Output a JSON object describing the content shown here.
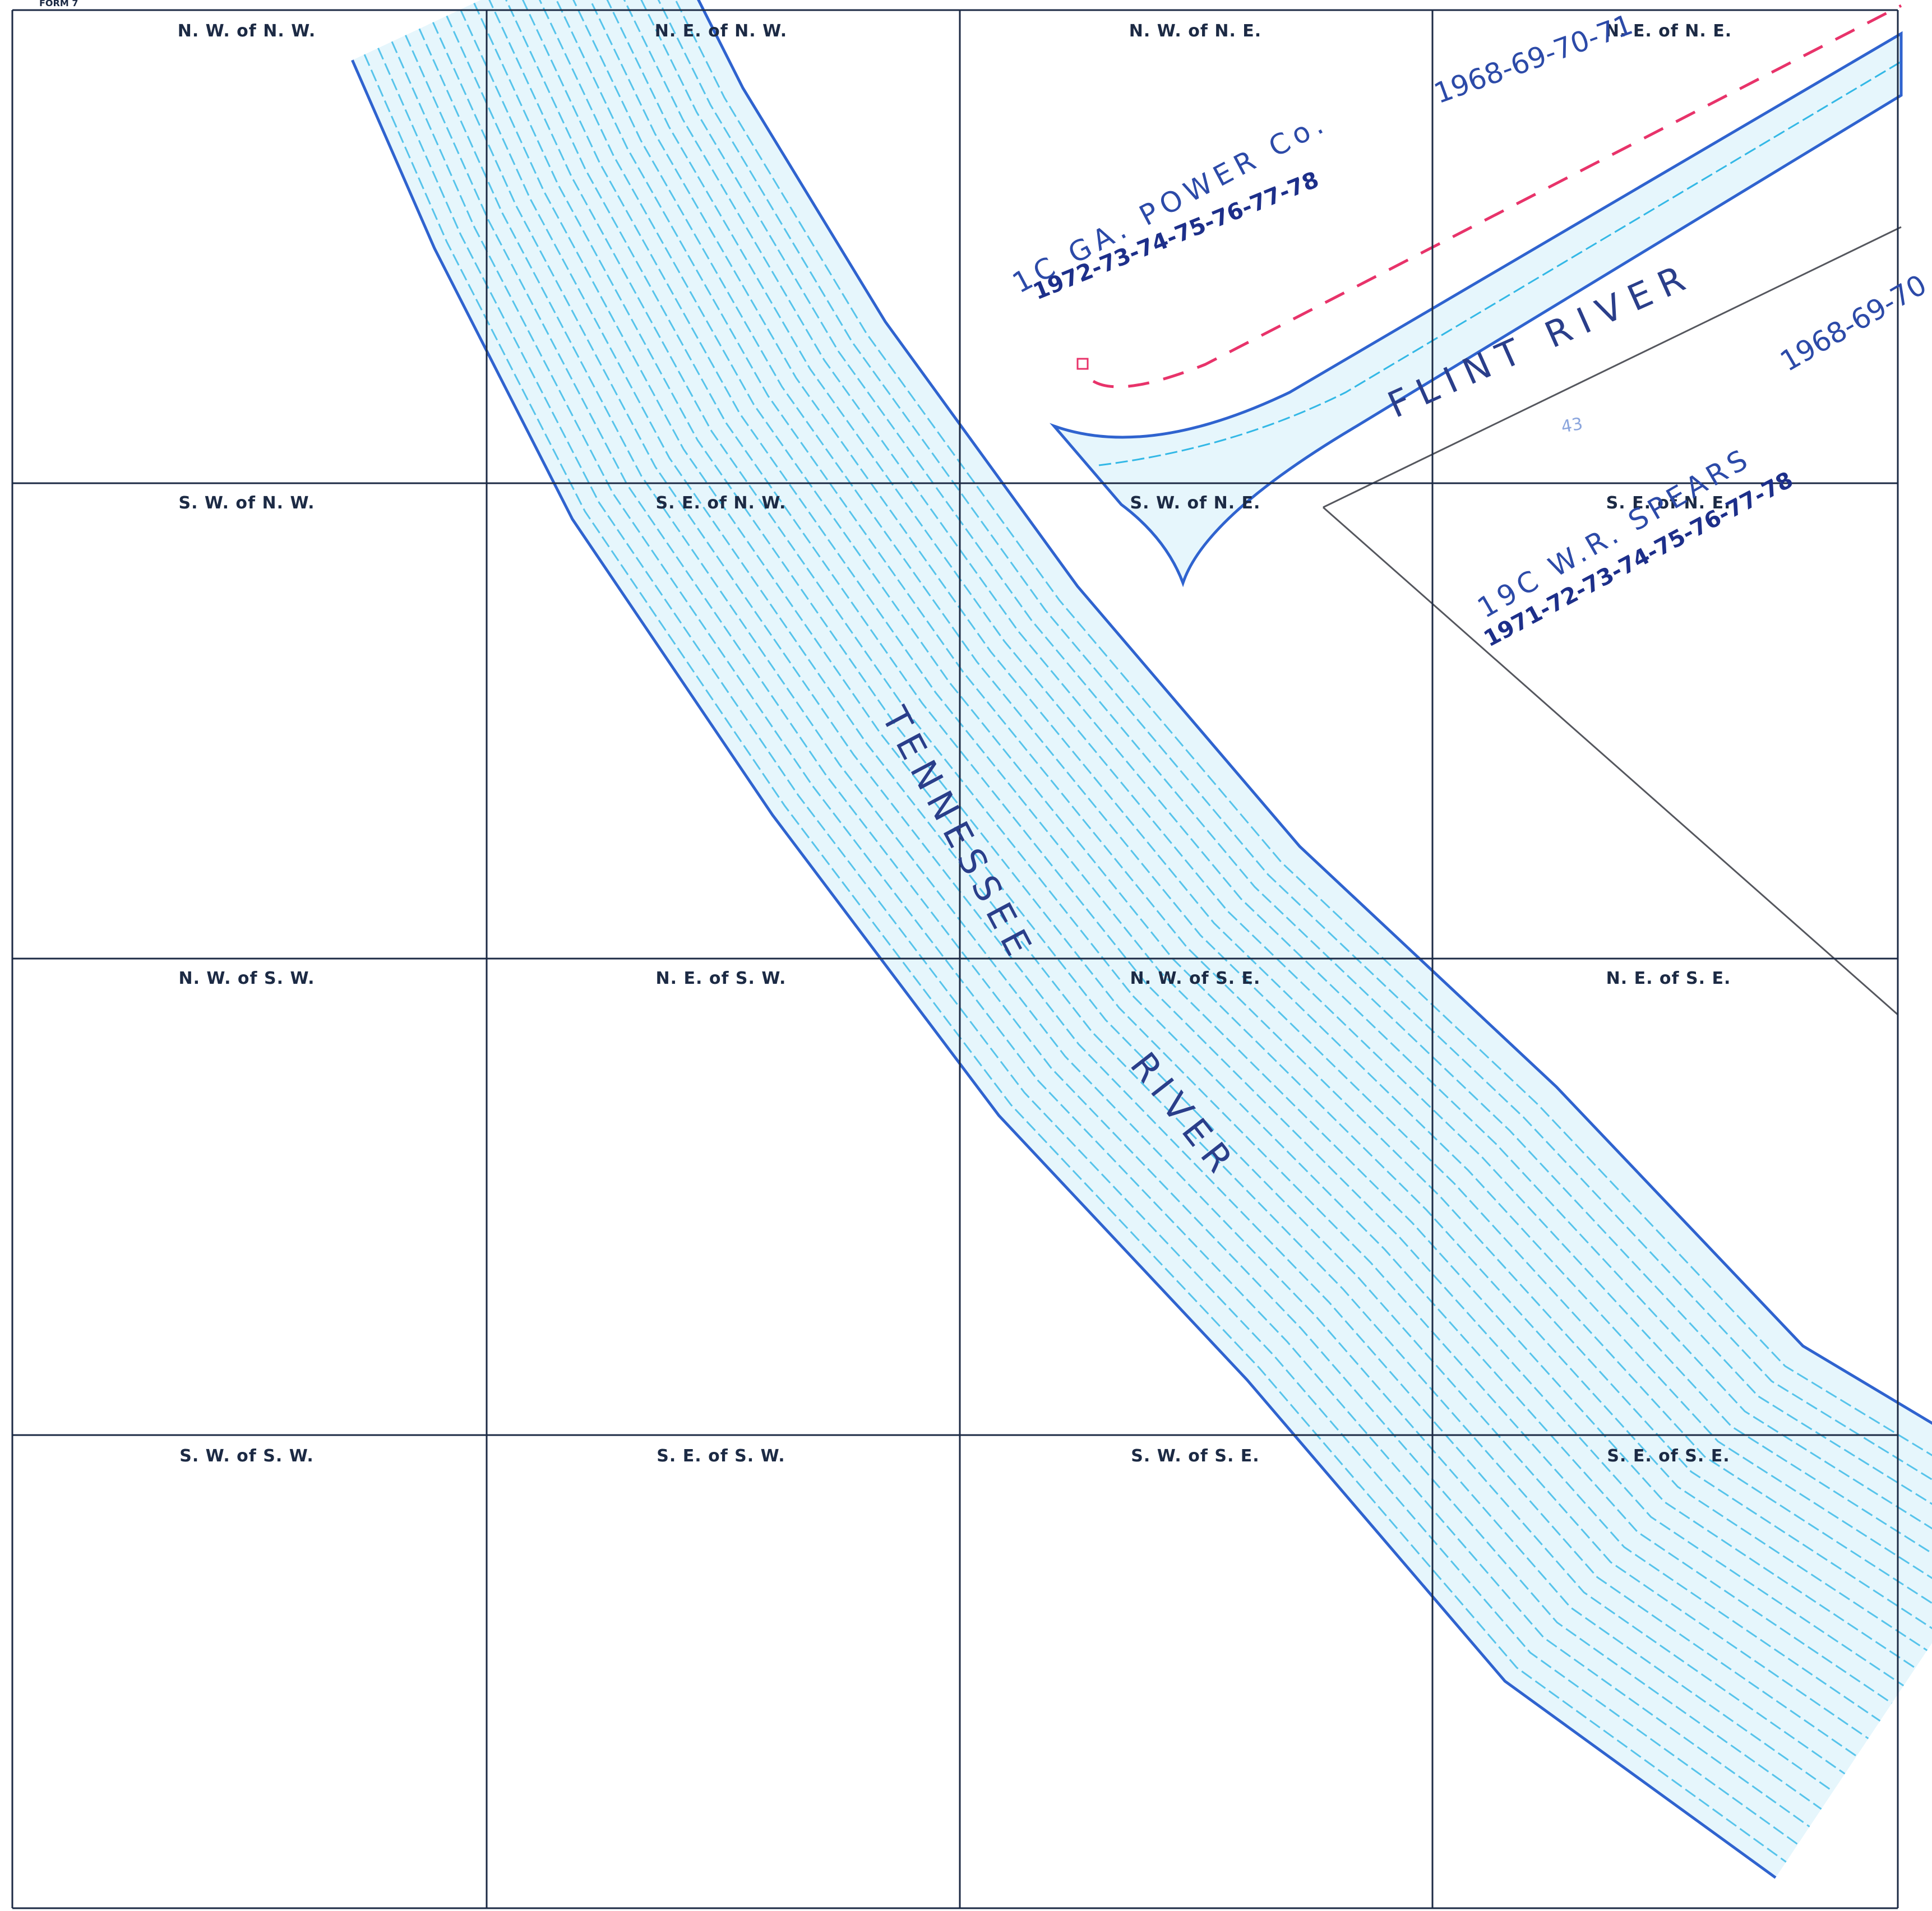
{
  "form_header": "FORM 7",
  "cells": [
    {
      "id": "nw-of-nw",
      "label": "N. W. of N. W."
    },
    {
      "id": "ne-of-nw",
      "label": "N. E. of N. W."
    },
    {
      "id": "nw-of-ne",
      "label": "N. W. of N. E."
    },
    {
      "id": "ne-of-ne",
      "label": "N. E. of N. E."
    },
    {
      "id": "sw-of-nw",
      "label": "S. W. of N. W."
    },
    {
      "id": "se-of-nw",
      "label": "S. E. of N. W."
    },
    {
      "id": "sw-of-ne",
      "label": "S. W. of N. E."
    },
    {
      "id": "se-of-ne",
      "label": "S. E. of N. E."
    },
    {
      "id": "nw-of-sw",
      "label": "N. W. of S. W."
    },
    {
      "id": "ne-of-sw",
      "label": "N. E. of S. W."
    },
    {
      "id": "nw-of-se",
      "label": "N. W. of S. E."
    },
    {
      "id": "ne-of-se",
      "label": "N. E. of S. E."
    },
    {
      "id": "sw-of-sw",
      "label": "S. W. of S. W."
    },
    {
      "id": "se-of-sw",
      "label": "S. E. of S. W."
    },
    {
      "id": "sw-of-se",
      "label": "S. W. of S. E."
    },
    {
      "id": "se-of-se",
      "label": "S. E. of S. E."
    }
  ],
  "rivers": {
    "tennessee_word1": "TENNESSEE",
    "tennessee_word2": "RIVER",
    "flint": "FLINT RIVER"
  },
  "annotations": {
    "ga_power": "1C GA. POWER Co.",
    "ga_power_years_a": "1968-69-70-71",
    "ga_power_years_b": "1972-73-74-75-76-77-78",
    "spears": "19C W.R. SPEARS",
    "spears_years_a": "1968-69-70",
    "spears_years_b": "1971-72-73-74-75-76-77-78",
    "faint_number": "43"
  },
  "colors": {
    "grid": "#1c2a44",
    "river_edge": "#2f63cf",
    "river_wave": "#33b8e6",
    "river_fill": "#e6f6fc",
    "boundary_red": "#e8336a",
    "property_line": "#55575e"
  }
}
